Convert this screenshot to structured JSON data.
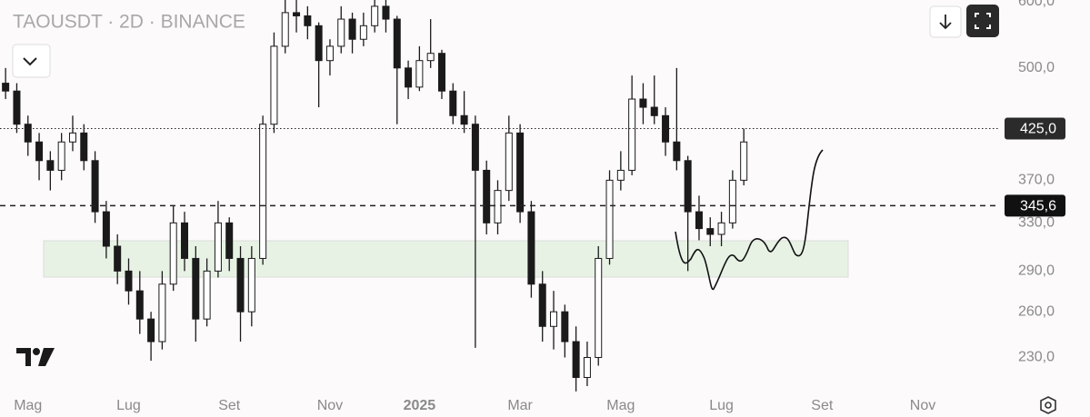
{
  "chart_data": {
    "type": "candlestick",
    "title": "TAOUSDT · 2D · BINANCE",
    "categories": [
      null,
      null,
      "Mag",
      null,
      null,
      null,
      null,
      null,
      null,
      null,
      null,
      "Lug",
      null,
      null,
      null,
      null,
      null,
      null,
      null,
      null,
      "Set",
      null,
      null,
      null,
      null,
      null,
      null,
      null,
      null,
      "Nov",
      null,
      null,
      null,
      null,
      null,
      null,
      null,
      "2025",
      null,
      null,
      null,
      null,
      null,
      null,
      null,
      null,
      "Mar",
      null,
      null,
      null,
      null,
      null,
      null,
      null,
      null,
      "Mag",
      null,
      null,
      null,
      null,
      null,
      null,
      null,
      null,
      "Lug",
      null,
      null,
      null,
      null,
      null,
      null,
      null,
      null,
      "Set",
      null,
      null,
      null,
      null,
      null,
      null,
      null,
      null,
      "Nov",
      null,
      null,
      null,
      null,
      null,
      null
    ],
    "open": [
      480,
      470,
      430,
      410,
      390,
      380,
      410,
      420,
      390,
      340,
      310,
      290,
      275,
      255,
      240,
      280,
      330,
      300,
      255,
      290,
      330,
      300,
      260,
      300,
      430,
      530,
      580,
      575,
      560,
      510,
      530,
      570,
      540,
      560,
      590,
      570,
      500,
      475,
      510,
      520,
      470,
      440,
      430,
      380,
      330,
      360,
      420,
      340,
      280,
      250,
      260,
      240,
      218,
      230,
      300,
      370,
      380,
      460,
      450,
      440,
      410,
      390,
      340,
      325,
      320,
      330,
      370,
      null,
      null,
      null,
      null,
      null,
      null,
      null,
      null,
      null,
      null,
      null,
      null,
      null,
      null,
      null,
      null,
      null,
      null,
      null,
      null,
      null,
      null
    ],
    "high": [
      500,
      480,
      440,
      420,
      400,
      420,
      440,
      430,
      400,
      350,
      320,
      300,
      290,
      260,
      290,
      345,
      340,
      310,
      300,
      350,
      335,
      310,
      310,
      440,
      550,
      600,
      600,
      590,
      565,
      540,
      590,
      580,
      580,
      600,
      600,
      575,
      510,
      530,
      570,
      525,
      480,
      470,
      440,
      390,
      370,
      440,
      430,
      350,
      290,
      275,
      265,
      250,
      240,
      310,
      380,
      400,
      490,
      480,
      490,
      450,
      500,
      395,
      355,
      335,
      340,
      380,
      425,
      null,
      null,
      null,
      null,
      null,
      null,
      null,
      null,
      null,
      null,
      null,
      null,
      null,
      null,
      null,
      null,
      null,
      null,
      null,
      null,
      null,
      null
    ],
    "low": [
      460,
      420,
      395,
      370,
      360,
      370,
      400,
      380,
      330,
      300,
      280,
      265,
      245,
      228,
      235,
      275,
      290,
      240,
      250,
      285,
      290,
      240,
      250,
      295,
      420,
      520,
      550,
      540,
      450,
      490,
      520,
      520,
      530,
      550,
      550,
      430,
      460,
      470,
      500,
      460,
      430,
      420,
      236,
      320,
      320,
      350,
      330,
      270,
      240,
      235,
      230,
      210,
      213,
      225,
      295,
      360,
      375,
      430,
      430,
      395,
      380,
      290,
      315,
      310,
      310,
      325,
      365,
      null,
      null,
      null,
      null,
      null,
      null,
      null,
      null,
      null,
      null,
      null,
      null,
      null,
      null,
      null,
      null,
      null,
      null,
      null,
      null,
      null,
      null
    ],
    "close": [
      470,
      430,
      410,
      390,
      380,
      410,
      420,
      390,
      340,
      310,
      290,
      275,
      255,
      240,
      280,
      330,
      300,
      255,
      290,
      330,
      300,
      260,
      300,
      430,
      530,
      580,
      575,
      560,
      510,
      530,
      570,
      540,
      560,
      590,
      570,
      500,
      475,
      510,
      520,
      470,
      440,
      430,
      380,
      330,
      360,
      420,
      340,
      280,
      250,
      260,
      240,
      218,
      230,
      300,
      370,
      380,
      460,
      450,
      440,
      410,
      390,
      340,
      325,
      320,
      330,
      370,
      410,
      null,
      null,
      null,
      null,
      null,
      null,
      null,
      null,
      null,
      null,
      null,
      null,
      null,
      null,
      null,
      null,
      null,
      null,
      null,
      null,
      null,
      null
    ],
    "up_color": "#ffffff",
    "down_color": "#1a1a1a",
    "wick_color": "#1a1a1a",
    "log_scale": true,
    "ylim": [
      213,
      600
    ],
    "yticks": [
      {
        "value": 600,
        "label": "600,0"
      },
      {
        "value": 500,
        "label": "500,0"
      },
      {
        "value": 370,
        "label": "370,0"
      },
      {
        "value": 330,
        "label": "330,0"
      },
      {
        "value": 290,
        "label": "290,0"
      },
      {
        "value": 260,
        "label": "260,0"
      },
      {
        "value": 230,
        "label": "230,0"
      }
    ],
    "price_lines": [
      {
        "value": 425,
        "label": "425,0",
        "style": "dotted"
      },
      {
        "value": 345.6,
        "label": "345,6",
        "style": "dashed"
      }
    ]
  }
}
